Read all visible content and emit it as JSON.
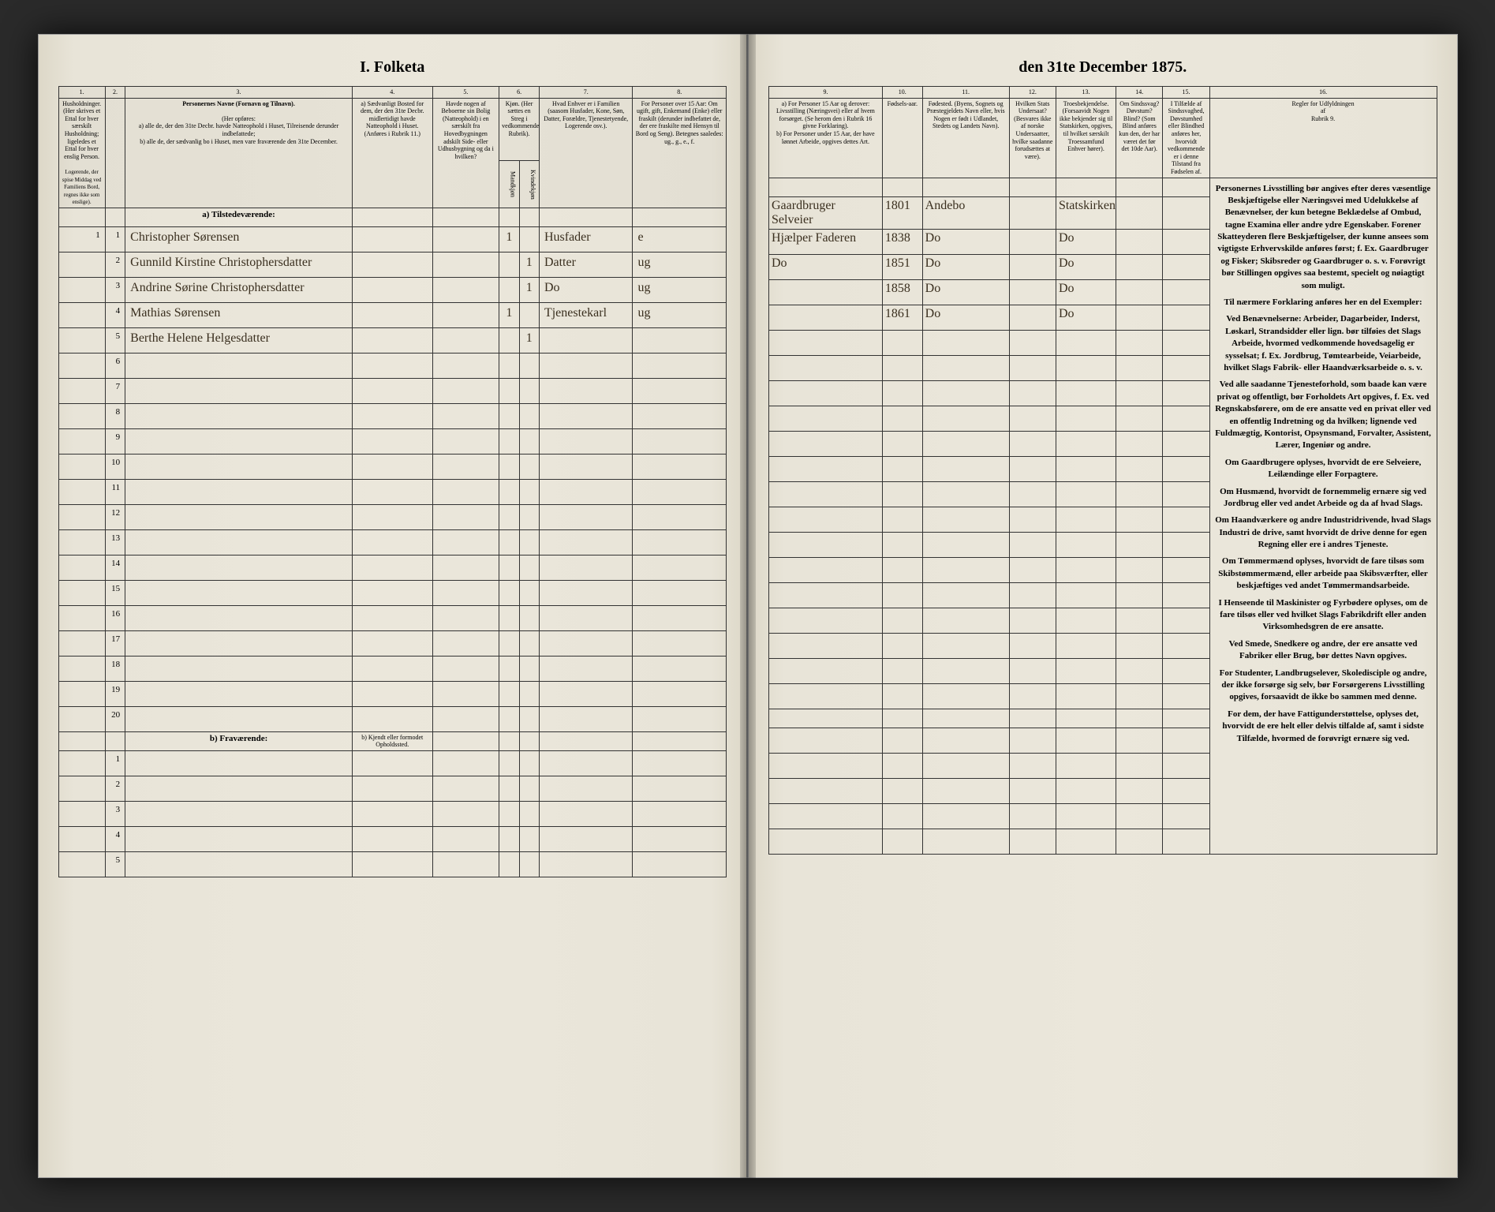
{
  "document": {
    "title_left": "I. Folketa",
    "title_right": "den 31te December 1875.",
    "colors": {
      "paper": "#e8e4d8",
      "ink": "#1a1a1a",
      "handwriting": "#3a2f1f",
      "border": "#333333",
      "background": "#2a2a2a"
    }
  },
  "left_columns": {
    "c1": "1.",
    "c2": "2.",
    "c3": "3.",
    "c4": "4.",
    "c5": "5.",
    "c6": "6.",
    "c7": "7.",
    "c8": "8."
  },
  "left_headers": {
    "h1": "Husholdninger. (Her skrives et Ettal for hver særskilt Husholdning; ligeledes et Ettal for hver enslig Person.",
    "h1_note": "Logerende, der spise Middag ved Familiens Bord, regnes ikke som enslige).",
    "h2": "",
    "h3": "Personernes Navne (Fornavn og Tilnavn).",
    "h3_sub": "(Her opføres:\na) alle de, der den 31te Decbr. havde Natteophold i Huset, Tilreisende derunder indbefattede;\nb) alle de, der sædvanlig bo i Huset, men vare fraværende den 31te December.",
    "h4": "a) Sædvanligt Bosted for dem, der den 31te Decbr. midlertidigt havde Natteophold i Huset. (Anføres i Rubrik 11.)",
    "h5": "Havde nogen af Beboerne sin Bolig (Natteophold) i en særskilt fra Hovedbygningen adskilt Side- eller Udhusbygning og da i hvilken?",
    "h6": "Kjøn. (Her sættes en Streg i vedkommende Rubrik).",
    "h6a": "Mandkjøn",
    "h6b": "Kvindekjøn",
    "h7": "Hvad Enhver er i Familien (saasom Husfader, Kone, Søn, Datter, Forældre, Tjenestetyende, Logerende osv.).",
    "h8": "For Personer over 15 Aar: Om ugift, gift, Enkemand (Enke) eller fraskilt (derunder indbefattet de, der ere fraskilte med Hensyn til Bord og Seng). Betegnes saaledes: ug., g., e., f."
  },
  "sections": {
    "a": "a) Tilstedeværende:",
    "b": "b) Fraværende:",
    "b_col4": "b) Kjendt eller formodet Opholdssted."
  },
  "rows": [
    {
      "n": "1",
      "hh": "1",
      "name": "Christopher Sørensen",
      "sex_m": "1",
      "sex_f": "",
      "rel": "Husfader",
      "civ": "e"
    },
    {
      "n": "2",
      "hh": "",
      "name": "Gunnild Kirstine Christophersdatter",
      "sex_m": "",
      "sex_f": "1",
      "rel": "Datter",
      "civ": "ug"
    },
    {
      "n": "3",
      "hh": "",
      "name": "Andrine Sørine Christophersdatter",
      "sex_m": "",
      "sex_f": "1",
      "rel": "Do",
      "civ": "ug"
    },
    {
      "n": "4",
      "hh": "",
      "name": "Mathias Sørensen",
      "sex_m": "1",
      "sex_f": "",
      "rel": "Tjenestekarl",
      "civ": "ug"
    },
    {
      "n": "5",
      "hh": "",
      "name": "Berthe Helene Helgesdatter",
      "sex_m": "",
      "sex_f": "1",
      "rel": "",
      "civ": ""
    }
  ],
  "empty_present": [
    "6",
    "7",
    "8",
    "9",
    "10",
    "11",
    "12",
    "13",
    "14",
    "15",
    "16",
    "17",
    "18",
    "19",
    "20"
  ],
  "empty_absent": [
    "1",
    "2",
    "3",
    "4",
    "5"
  ],
  "right_columns": {
    "c9": "9.",
    "c10": "10.",
    "c11": "11.",
    "c12": "12.",
    "c13": "13.",
    "c14": "14.",
    "c15": "15.",
    "c16": "16."
  },
  "right_headers": {
    "h9": "a) For Personer 15 Aar og derover: Livsstilling (Næringsvei) eller af hvem forsørget. (Se herom den i Rubrik 16 givne Forklaring).\nb) For Personer under 15 Aar, der have lønnet Arbeide, opgives dettes Art.",
    "h10": "Fødsels-aar.",
    "h11": "Fødested. (Byens, Sognets og Præstegjeldets Navn eller, hvis Nogen er født i Udlandet, Stedets og Landets Navn).",
    "h12": "Hvilken Stats Undersaat? (Besvares ikke af norske Undersaatter, hvilke saadanne forudsættes at være).",
    "h13": "Troesbekjendelse. (Forsaavidt Nogen ikke bekjender sig til Statskirken, opgives, til hvilket særskilt Troessamfund Enhver hører).",
    "h14": "Om Sindssvag? Døvstum? Blind? (Som Blind anføres kun den, der har været det før det 10de Aar).",
    "h15": "I Tilfælde af Sindssvaghed, Døvstumhed eller Blindhed anføres her, hvorvidt vedkommende er i denne Tilstand fra Fødselen af.",
    "h16": "Regler for Udfyldningen af Rubrik 9."
  },
  "right_rows": [
    {
      "liv": "Gaardbruger Selveier",
      "aar": "1801",
      "sted": "Andebo",
      "tro": "Statskirken"
    },
    {
      "liv": "Hjælper Faderen",
      "aar": "1838",
      "sted": "Do",
      "tro": "Do"
    },
    {
      "liv": "Do",
      "aar": "1851",
      "sted": "Do",
      "tro": "Do"
    },
    {
      "liv": "",
      "aar": "1858",
      "sted": "Do",
      "tro": "Do"
    },
    {
      "liv": "",
      "aar": "1861",
      "sted": "Do",
      "tro": "Do"
    }
  ],
  "rules_text": {
    "title": "Regler for Udfyldningen\naf\nRubrik 9.",
    "p1": "Personernes Livsstilling bør angives efter deres væsentlige Beskjæftigelse eller Næringsvei med Udelukkelse af Benævnelser, der kun betegne Beklædelse af Ombud, tagne Examina eller andre ydre Egenskaber. Forener Skatteyderen flere Beskjæftigelser, der kunne ansees som vigtigste Erhvervskilde anføres først; f. Ex. Gaardbruger og Fisker; Skibsreder og Gaardbruger o. s. v. Forøvrigt bør Stillingen opgives saa bestemt, specielt og nøiagtigt som muligt.",
    "p2": "Til nærmere Forklaring anføres her en del Exempler:",
    "p3": "Ved Benævnelserne: Arbeider, Dagarbeider, Inderst, Løskarl, Strandsidder eller lign. bør tilføies det Slags Arbeide, hvormed vedkommende hovedsagelig er sysselsat; f. Ex. Jordbrug, Tømtearbeide, Veiarbeide, hvilket Slags Fabrik- eller Haandværksarbeide o. s. v.",
    "p4": "Ved alle saadanne Tjenesteforhold, som baade kan være privat og offentligt, bør Forholdets Art opgives, f. Ex. ved Regnskabsførere, om de ere ansatte ved en privat eller ved en offentlig Indretning og da hvilken; lignende ved Fuldmægtig, Kontorist, Opsynsmand, Forvalter, Assistent, Lærer, Ingeniør og andre.",
    "p5": "Om Gaardbrugere oplyses, hvorvidt de ere Selveiere, Leilændinge eller Forpagtere.",
    "p6": "Om Husmænd, hvorvidt de fornemmelig ernære sig ved Jordbrug eller ved andet Arbeide og da af hvad Slags.",
    "p7": "Om Haandværkere og andre Industridrivende, hvad Slags Industri de drive, samt hvorvidt de drive denne for egen Regning eller ere i andres Tjeneste.",
    "p8": "Om Tømmermænd oplyses, hvorvidt de fare tilsøs som Skibstømmermænd, eller arbeide paa Skibsværfter, eller beskjæftiges ved andet Tømmermandsarbeide.",
    "p9": "I Henseende til Maskinister og Fyrbødere oplyses, om de fare tilsøs eller ved hvilket Slags Fabrikdrift eller anden Virksomhedsgren de ere ansatte.",
    "p10": "Ved Smede, Snedkere og andre, der ere ansatte ved Fabriker eller Brug, bør dettes Navn opgives.",
    "p11": "For Studenter, Landbrugselever, Skoledisciple og andre, der ikke forsørge sig selv, bør Forsørgerens Livsstilling opgives, forsaavidt de ikke bo sammen med denne.",
    "p12": "For dem, der have Fattigunderstøttelse, oplyses det, hvorvidt de ere helt eller delvis tilfalde af, samt i sidste Tilfælde, hvormed de forøvrigt ernære sig ved."
  }
}
